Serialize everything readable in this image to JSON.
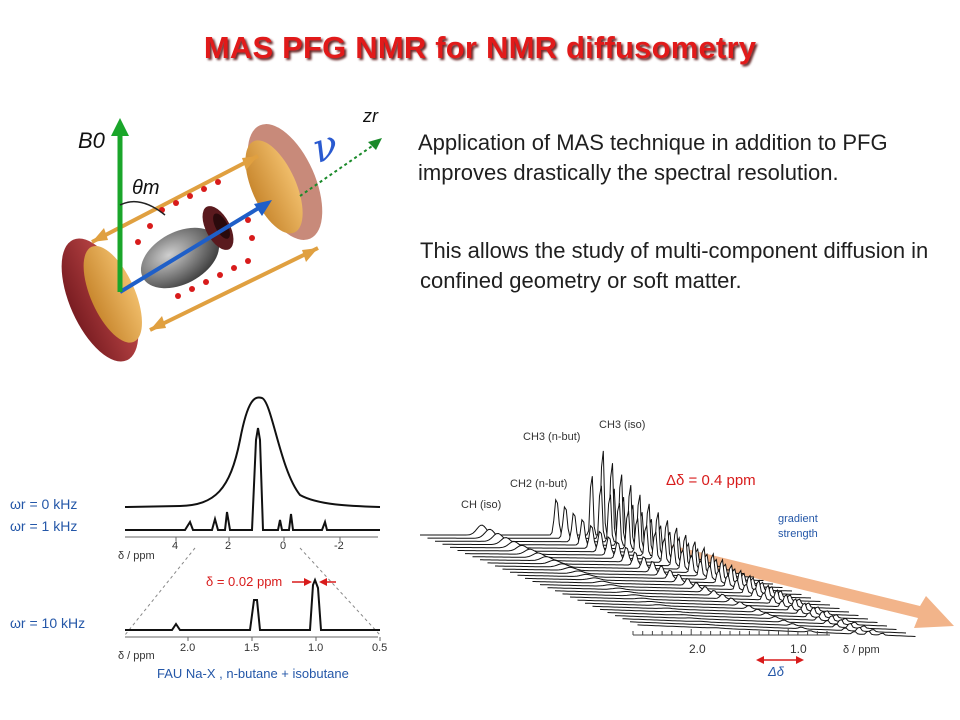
{
  "slide": {
    "title": "MAS PFG NMR for NMR diffusometry",
    "paragraph_1": "Application of MAS technique in addition to PFG improves drastically the spectral resolution.",
    "paragraph_2": "This allows the study of multi-component diffusion in confined geometry or soft matter."
  },
  "rotor_diagram": {
    "b0_label": "B0",
    "zr_label": "zr",
    "theta_label": "θm",
    "nu_label": "ν"
  },
  "left_spectra": {
    "wr0": "ωr = 0 kHz",
    "wr1": "ωr = 1 kHz",
    "wr10": "ωr = 10 kHz",
    "top_axis_unit": "δ / ppm",
    "top_axis_ticks": [
      "4",
      "2",
      "0",
      "-2"
    ],
    "bottom_axis_unit": "δ / ppm",
    "bottom_axis_ticks": [
      "2.0",
      "1.5",
      "1.0",
      "0.5"
    ],
    "delta_annotation": "δ = 0.02 ppm",
    "caption": "FAU Na-X , n-butane + isobutane",
    "colors": {
      "axis": "#555555",
      "annotation": "#d81b1b",
      "label": "#2457a8"
    }
  },
  "right_spectra": {
    "peak_ch3_iso": "CH3 (iso)",
    "peak_ch3_nbut": "CH3 (n-but)",
    "peak_ch2_nbut": "CH2 (n-but)",
    "peak_ch_iso": "CH (iso)",
    "delta_annotation": "Δδ = 0.4 ppm",
    "gradient_label": "gradient strength",
    "axis_ticks": [
      "2.0",
      "1.0"
    ],
    "axis_unit": "δ / ppm",
    "delta_bottom": "Δδ",
    "colors": {
      "arrow": "#f2b48a",
      "annotation": "#d81b1b",
      "label": "#2457a8"
    }
  }
}
